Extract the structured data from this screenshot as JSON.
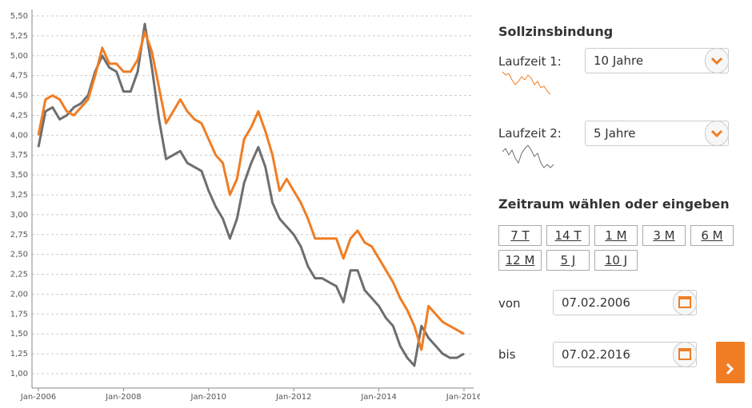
{
  "chart_data": {
    "type": "line",
    "categories": [
      "Jan-2006",
      null,
      null,
      null,
      null,
      null,
      null,
      null,
      null,
      null,
      null,
      null,
      "Jan-2008",
      null,
      null,
      null,
      null,
      null,
      null,
      null,
      null,
      null,
      null,
      null,
      "Jan-2010",
      null,
      null,
      null,
      null,
      null,
      null,
      null,
      null,
      null,
      null,
      null,
      "Jan-2012",
      null,
      null,
      null,
      null,
      null,
      null,
      null,
      null,
      null,
      null,
      null,
      "Jan-2014",
      null,
      null,
      null,
      null,
      null,
      null,
      null,
      null,
      null,
      null,
      null,
      "Jan-2016"
    ],
    "series": [
      {
        "color": "#f07d23",
        "values": [
          4.0,
          4.45,
          4.5,
          4.45,
          4.3,
          4.25,
          4.35,
          4.45,
          4.75,
          5.1,
          4.9,
          4.9,
          4.8,
          4.8,
          4.95,
          5.3,
          5.05,
          4.6,
          4.15,
          4.3,
          4.45,
          4.3,
          4.2,
          4.15,
          3.95,
          3.75,
          3.65,
          3.25,
          3.45,
          3.95,
          4.1,
          4.3,
          4.05,
          3.75,
          3.3,
          3.45,
          3.3,
          3.15,
          2.95,
          2.7,
          2.7,
          2.7,
          2.7,
          2.45,
          2.7,
          2.8,
          2.65,
          2.6,
          2.45,
          2.3,
          2.15,
          1.95,
          1.8,
          1.6,
          1.3,
          1.85,
          1.75,
          1.65,
          1.6,
          1.55,
          1.5
        ]
      },
      {
        "color": "#6d6e70",
        "values": [
          3.85,
          4.3,
          4.35,
          4.2,
          4.25,
          4.35,
          4.4,
          4.5,
          4.8,
          5.0,
          4.85,
          4.8,
          4.55,
          4.55,
          4.8,
          5.4,
          4.85,
          4.2,
          3.7,
          3.75,
          3.8,
          3.65,
          3.6,
          3.55,
          3.3,
          3.1,
          2.95,
          2.7,
          2.95,
          3.4,
          3.65,
          3.85,
          3.6,
          3.15,
          2.95,
          2.85,
          2.75,
          2.6,
          2.35,
          2.2,
          2.2,
          2.15,
          2.1,
          1.9,
          2.3,
          2.3,
          2.05,
          1.95,
          1.85,
          1.7,
          1.6,
          1.35,
          1.2,
          1.1,
          1.6,
          1.45,
          1.35,
          1.25,
          1.2,
          1.2,
          1.25
        ]
      }
    ],
    "ylim": [
      1.0,
      5.5
    ],
    "yticks": [
      {
        "value": 1.0,
        "label": "1,00"
      },
      {
        "value": 1.25,
        "label": "1,25"
      },
      {
        "value": 1.5,
        "label": "1,50"
      },
      {
        "value": 1.75,
        "label": "1,75"
      },
      {
        "value": 2.0,
        "label": "2,00"
      },
      {
        "value": 2.25,
        "label": "2,25"
      },
      {
        "value": 2.5,
        "label": "2,50"
      },
      {
        "value": 2.75,
        "label": "2,75"
      },
      {
        "value": 3.0,
        "label": "3,00"
      },
      {
        "value": 3.25,
        "label": "3,25"
      },
      {
        "value": 3.5,
        "label": "3,50"
      },
      {
        "value": 3.75,
        "label": "3,75"
      },
      {
        "value": 4.0,
        "label": "4,00"
      },
      {
        "value": 4.25,
        "label": "4,25"
      },
      {
        "value": 4.5,
        "label": "4,50"
      },
      {
        "value": 4.75,
        "label": "4,75"
      },
      {
        "value": 5.0,
        "label": "5,00"
      },
      {
        "value": 5.25,
        "label": "5,25"
      },
      {
        "value": 5.5,
        "label": "5,50"
      }
    ],
    "grid": true
  },
  "form": {
    "title": "Sollzinsbindung",
    "term1_label": "Laufzeit 1:",
    "term1_value": "10 Jahre",
    "term2_label": "Laufzeit 2:",
    "term2_value": "5 Jahre",
    "range_title": "Zeitraum wählen oder eingeben",
    "ranges": [
      "7 T",
      "14 T",
      "1 M",
      "3 M",
      "6 M",
      "12 M",
      "5 J",
      "10 J"
    ],
    "from_label": "von",
    "from_value": "07.02.2006",
    "to_label": "bis",
    "to_value": "07.02.2016"
  }
}
